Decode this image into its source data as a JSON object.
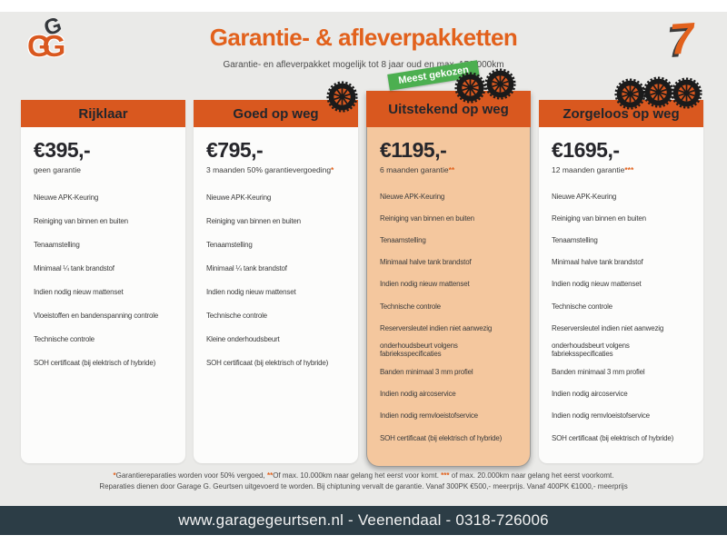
{
  "header": {
    "logo_top": "G",
    "logo_bottom": "GG",
    "title": "Garantie- & afleverpakketten",
    "subtitle": "Garantie- en afleverpakket mogelijk tot 8 jaar oud en max. 150.000km",
    "seven": "7"
  },
  "badge": {
    "label": "Meest gekozen"
  },
  "columns": [
    {
      "name": "Rijklaar",
      "price": "€395,-",
      "price_note": "geen garantie",
      "asterisks": "",
      "tires": 0,
      "highlighted": false,
      "items": [
        "Nieuwe APK-Keuring",
        "Reiniging van binnen en buiten",
        "Tenaamstelling",
        "Minimaal ¼ tank brandstof",
        "Indien nodig nieuw mattenset",
        "Vloeistoffen en bandenspanning controle",
        "Technische controle",
        "SOH certificaat (bij elektrisch of hybride)"
      ]
    },
    {
      "name": "Goed op weg",
      "price": "€795,-",
      "price_note": "3 maanden 50% garantievergoeding",
      "asterisks": "*",
      "tires": 1,
      "highlighted": false,
      "items": [
        "Nieuwe APK-Keuring",
        "Reiniging van binnen en buiten",
        "Tenaamstelling",
        "Minimaal ¼ tank brandstof",
        "Indien nodig nieuw mattenset",
        "Technische controle",
        "Kleine onderhoudsbeurt",
        "SOH certificaat (bij elektrisch of hybride)"
      ]
    },
    {
      "name": "Uitstekend op weg",
      "price": "€1195,-",
      "price_note": "6 maanden garantie",
      "asterisks": "**",
      "tires": 2,
      "highlighted": true,
      "items": [
        "Nieuwe APK-Keuring",
        "Reiniging van binnen en buiten",
        "Tenaamstelling",
        "Minimaal halve tank brandstof",
        "Indien nodig nieuw mattenset",
        "Technische controle",
        "Reserversleutel indien niet aanwezig",
        "onderhoudsbeurt volgens fabrieksspecificaties",
        "Banden minimaal 3 mm profiel",
        "Indien nodig aircoservice",
        "Indien nodig remvloeistofservice",
        "SOH certificaat (bij elektrisch of hybride)"
      ]
    },
    {
      "name": "Zorgeloos op weg",
      "price": "€1695,-",
      "price_note": "12 maanden garantie",
      "asterisks": "***",
      "tires": 3,
      "highlighted": false,
      "items": [
        "Nieuwe APK-Keuring",
        "Reiniging van binnen en buiten",
        "Tenaamstelling",
        "Minimaal halve tank brandstof",
        "Indien nodig nieuw mattenset",
        "Technische controle",
        "Reserversleutel indien niet aanwezig",
        "onderhoudsbeurt volgens fabrieksspecificaties",
        "Banden minimaal 3 mm profiel",
        "Indien nodig aircoservice",
        "Indien nodig remvloeistofservice",
        "SOH certificaat (bij elektrisch of hybride)"
      ]
    }
  ],
  "footnotes": {
    "a1": "*",
    "t1": "Garantiereparaties worden voor 50% vergoed, ",
    "a2": "**",
    "t2": "Of max. 10.000km naar gelang het eerst voor komt. ",
    "a3": "***",
    "t3": " of max. 20.000km naar gelang het eerst voorkomt.",
    "line2": "Reparaties dienen door Garage G. Geurtsen uitgevoerd te worden. Bij chiptuning vervalt de garantie. Vanaf 300PK €500,- meerprijs. Vanaf 400PK €1000,- meerprijs"
  },
  "footer": {
    "site": "www.garagegeurtsen.nl - Veenendaal - 0318-726006"
  },
  "colors": {
    "accent_orange": "#d9581f",
    "title_orange": "#e2611c",
    "badge_green": "#4caf50",
    "footer_navy": "#2c3d46",
    "highlight_peach": "#f4c79e",
    "page_bg": "#eaeae8"
  }
}
